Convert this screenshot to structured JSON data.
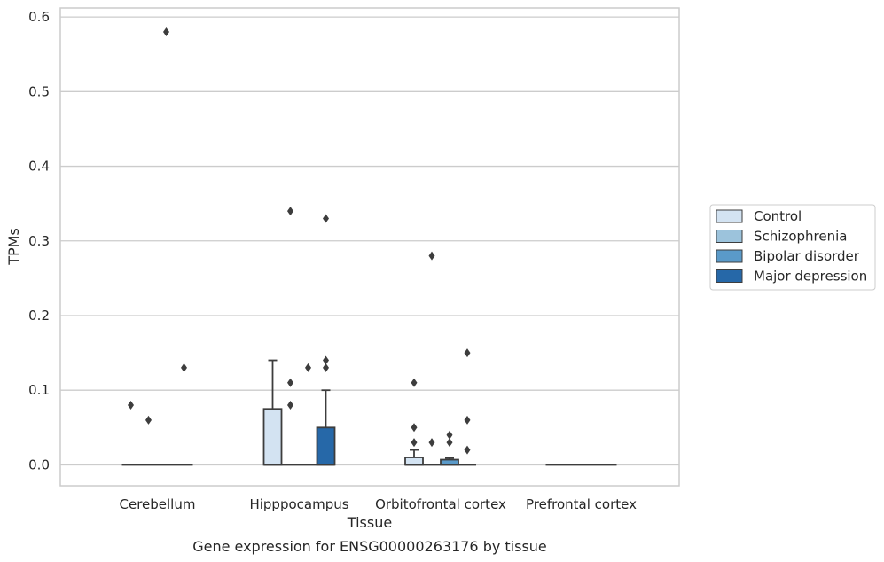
{
  "chart_data": {
    "type": "box",
    "xlabel": "Tissue",
    "ylabel": "TPMs",
    "caption": "Gene expression for ENSG00000263176 by tissue",
    "ylim": [
      -0.028,
      0.612
    ],
    "yticks": [
      "0.0",
      "0.1",
      "0.2",
      "0.3",
      "0.4",
      "0.5",
      "0.6"
    ],
    "ytick_values": [
      0.0,
      0.1,
      0.2,
      0.3,
      0.4,
      0.5,
      0.6
    ],
    "grid": "horizontal",
    "legend_position": "right",
    "categories": [
      "Cerebellum",
      "Hipppocampus",
      "Orbitofrontal cortex",
      "Prefrontal cortex"
    ],
    "series": [
      {
        "name": "Control",
        "color": "#d3e3f2",
        "boxes": [
          {
            "q1": 0,
            "median": 0,
            "q3": 0,
            "whisker_low": 0,
            "whisker_high": 0,
            "outliers": [
              0.08
            ]
          },
          {
            "q1": 0,
            "median": 0,
            "q3": 0.075,
            "whisker_low": 0,
            "whisker_high": 0.14,
            "outliers": []
          },
          {
            "q1": 0,
            "median": 0,
            "q3": 0.01,
            "whisker_low": 0,
            "whisker_high": 0.02,
            "outliers": [
              0.03,
              0.05,
              0.11
            ]
          },
          {
            "q1": 0,
            "median": 0,
            "q3": 0,
            "whisker_low": 0,
            "whisker_high": 0,
            "outliers": []
          }
        ]
      },
      {
        "name": "Schizophrenia",
        "color": "#9cc3dc",
        "boxes": [
          {
            "q1": 0,
            "median": 0,
            "q3": 0,
            "whisker_low": 0,
            "whisker_high": 0,
            "outliers": [
              0.06
            ]
          },
          {
            "q1": 0,
            "median": 0,
            "q3": 0,
            "whisker_low": 0,
            "whisker_high": 0,
            "outliers": [
              0.08,
              0.11,
              0.34
            ]
          },
          {
            "q1": 0,
            "median": 0,
            "q3": 0,
            "whisker_low": 0,
            "whisker_high": 0,
            "outliers": [
              0.03,
              0.28
            ]
          },
          {
            "q1": 0,
            "median": 0,
            "q3": 0,
            "whisker_low": 0,
            "whisker_high": 0,
            "outliers": []
          }
        ]
      },
      {
        "name": "Bipolar disorder",
        "color": "#5a9ac9",
        "boxes": [
          {
            "q1": 0,
            "median": 0,
            "q3": 0,
            "whisker_low": 0,
            "whisker_high": 0,
            "outliers": [
              0.58
            ]
          },
          {
            "q1": 0,
            "median": 0,
            "q3": 0,
            "whisker_low": 0,
            "whisker_high": 0,
            "outliers": [
              0.13
            ]
          },
          {
            "q1": 0,
            "median": 0,
            "q3": 0.007,
            "whisker_low": 0,
            "whisker_high": 0.009,
            "outliers": [
              0.03,
              0.04
            ]
          },
          {
            "q1": 0,
            "median": 0,
            "q3": 0,
            "whisker_low": 0,
            "whisker_high": 0,
            "outliers": []
          }
        ]
      },
      {
        "name": "Major depression",
        "color": "#2668a8",
        "boxes": [
          {
            "q1": 0,
            "median": 0,
            "q3": 0,
            "whisker_low": 0,
            "whisker_high": 0,
            "outliers": [
              0.13
            ]
          },
          {
            "q1": 0,
            "median": 0,
            "q3": 0.05,
            "whisker_low": 0,
            "whisker_high": 0.1,
            "outliers": [
              0.13,
              0.14,
              0.33
            ]
          },
          {
            "q1": 0,
            "median": 0,
            "q3": 0,
            "whisker_low": 0,
            "whisker_high": 0,
            "outliers": [
              0.02,
              0.06,
              0.15
            ]
          },
          {
            "q1": 0,
            "median": 0,
            "q3": 0,
            "whisker_low": 0,
            "whisker_high": 0,
            "outliers": []
          }
        ]
      }
    ]
  }
}
